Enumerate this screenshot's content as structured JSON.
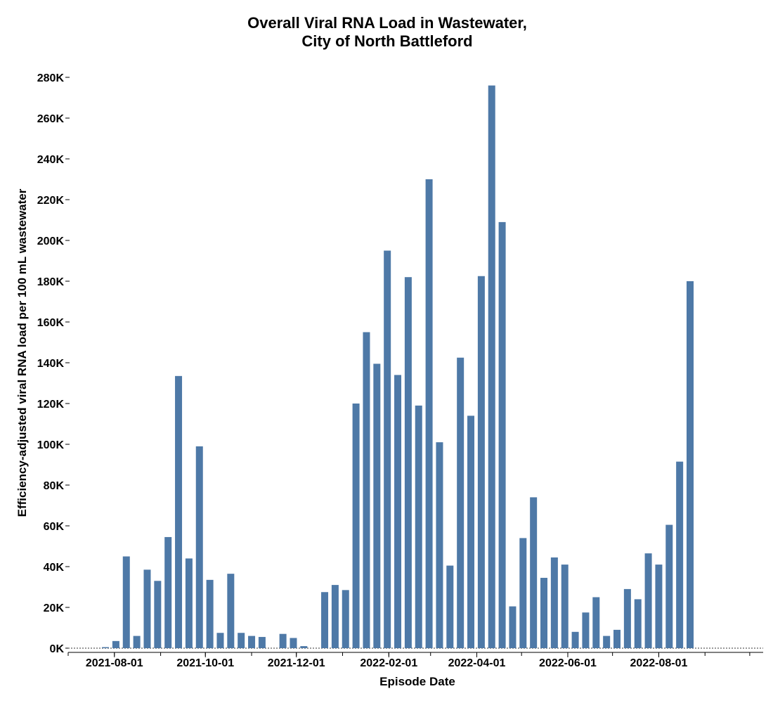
{
  "chart_data": {
    "type": "bar",
    "title": [
      "Overall Viral RNA Load in Wastewater,",
      "City of North Battleford"
    ],
    "xlabel": "Episode Date",
    "ylabel": "Efficiency-adjusted viral RNA load per 100 mL wastewater",
    "ylim": [
      0,
      280000
    ],
    "y_ticks": [
      0,
      20000,
      40000,
      60000,
      80000,
      100000,
      120000,
      140000,
      160000,
      180000,
      200000,
      220000,
      240000,
      260000,
      280000
    ],
    "y_tick_labels": [
      "0K",
      "20K",
      "40K",
      "60K",
      "80K",
      "100K",
      "120K",
      "140K",
      "160K",
      "180K",
      "200K",
      "220K",
      "240K",
      "260K",
      "280K"
    ],
    "x_range": [
      "2021-07-01",
      "2022-10-10"
    ],
    "x_tick_labels": [
      "2021-08-01",
      "2021-10-01",
      "2021-12-01",
      "2022-02-01",
      "2022-04-01",
      "2022-06-01",
      "2022-08-01"
    ],
    "bar_color": "#4e79a7",
    "grid": false,
    "x": [
      "2021-07-26",
      "2021-08-02",
      "2021-08-09",
      "2021-08-16",
      "2021-08-23",
      "2021-08-30",
      "2021-09-06",
      "2021-09-13",
      "2021-09-20",
      "2021-09-27",
      "2021-10-04",
      "2021-10-11",
      "2021-10-18",
      "2021-10-25",
      "2021-11-01",
      "2021-11-08",
      "2021-11-15",
      "2021-11-22",
      "2021-11-29",
      "2021-12-06",
      "2021-12-13",
      "2021-12-20",
      "2021-12-27",
      "2022-01-03",
      "2022-01-10",
      "2022-01-17",
      "2022-01-24",
      "2022-01-31",
      "2022-02-07",
      "2022-02-14",
      "2022-02-21",
      "2022-02-28",
      "2022-03-07",
      "2022-03-14",
      "2022-03-21",
      "2022-03-28",
      "2022-04-04",
      "2022-04-11",
      "2022-04-18",
      "2022-04-25",
      "2022-05-02",
      "2022-05-09",
      "2022-05-16",
      "2022-05-23",
      "2022-05-30",
      "2022-06-06",
      "2022-06-13",
      "2022-06-20",
      "2022-06-27",
      "2022-07-04",
      "2022-07-11",
      "2022-07-18",
      "2022-07-25",
      "2022-08-01",
      "2022-08-08",
      "2022-08-15",
      "2022-08-22",
      "2022-08-29",
      "2022-09-05",
      "2022-09-12"
    ],
    "values": [
      500,
      3500,
      45000,
      6000,
      38500,
      33000,
      54500,
      133500,
      44000,
      99000,
      33500,
      7500,
      36500,
      7500,
      6000,
      5500,
      0,
      7000,
      5000,
      1000,
      0,
      27500,
      31000,
      28500,
      120000,
      155000,
      139500,
      195000,
      134000,
      182000,
      119000,
      230000,
      101000,
      40500,
      142500,
      114000,
      182500,
      276000,
      209000,
      20500,
      54000,
      74000,
      34500,
      44500,
      41000,
      8000,
      17500,
      25000,
      6000,
      9000,
      29000,
      24000,
      46500,
      41000,
      60500,
      91500,
      180000,
      0,
      0,
      0
    ]
  }
}
